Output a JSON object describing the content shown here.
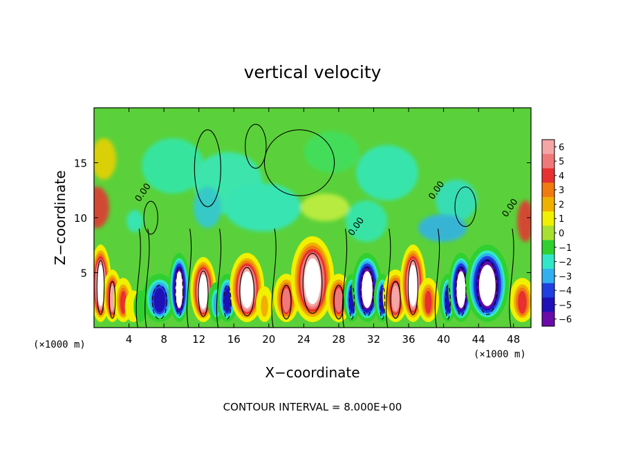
{
  "chart_data": {
    "type": "heatmap",
    "title": "vertical velocity",
    "xlabel": "X−coordinate",
    "ylabel": "Z−coordinate",
    "x_unit_note": "(×1000 m)",
    "y_unit_note": "(×1000 m)",
    "xlim": [
      0,
      50
    ],
    "ylim": [
      0,
      20
    ],
    "x_ticks": [
      "4",
      "8",
      "12",
      "16",
      "20",
      "24",
      "28",
      "32",
      "36",
      "40",
      "44",
      "48"
    ],
    "x_tick_values": [
      4,
      8,
      12,
      16,
      20,
      24,
      28,
      32,
      36,
      40,
      44,
      48
    ],
    "y_ticks": [
      "5",
      "10",
      "15"
    ],
    "y_tick_values": [
      5,
      10,
      15
    ],
    "colorbar": {
      "labels": [
        "6",
        "5",
        "4",
        "3",
        "2",
        "1",
        "0",
        "−1",
        "−2",
        "−3",
        "−4",
        "−5",
        "−6"
      ],
      "values": [
        6,
        5,
        4,
        3,
        2,
        1,
        0,
        -1,
        -2,
        -3,
        -4,
        -5,
        -6
      ],
      "colors": [
        "#f4a6a6",
        "#f07878",
        "#e83030",
        "#f07a10",
        "#f0b000",
        "#f0f000",
        "#a8e030",
        "#30d030",
        "#30e8c8",
        "#30b0f0",
        "#1f3fe0",
        "#2010b8",
        "#6a0aa8"
      ]
    },
    "contour_levels": [
      -8,
      0,
      8
    ],
    "contour_labels": [
      "0.00"
    ],
    "footnote": "CONTOUR INTERVAL = 8.000E+00",
    "cells": [
      {
        "x": [
          0,
          1.5
        ],
        "v": 12
      },
      {
        "x": [
          1.5,
          2.7
        ],
        "v": 6
      },
      {
        "x": [
          2.7,
          4.0
        ],
        "v": 4
      },
      {
        "x": [
          4.0,
          5.0
        ],
        "v": 1
      },
      {
        "x": [
          5.0,
          5.6
        ],
        "v": -1
      },
      {
        "x": [
          6.0,
          9.0
        ],
        "v": -5
      },
      {
        "x": [
          9.0,
          10.5
        ],
        "v": -10
      },
      {
        "x": [
          11.5,
          13.5
        ],
        "v": 9
      },
      {
        "x": [
          13.5,
          14.5
        ],
        "v": -3
      },
      {
        "x": [
          14.5,
          16.0
        ],
        "v": -5
      },
      {
        "x": [
          16.0,
          19.0
        ],
        "v": 10
      },
      {
        "x": [
          19.0,
          20.0
        ],
        "v": 2
      },
      {
        "x": [
          21.0,
          23.0
        ],
        "v": 5
      },
      {
        "x": [
          23.0,
          27.0
        ],
        "v": 14
      },
      {
        "x": [
          27.0,
          29.0
        ],
        "v": 5
      },
      {
        "x": [
          29.0,
          30.0
        ],
        "v": -5
      },
      {
        "x": [
          30.0,
          32.5
        ],
        "v": -10
      },
      {
        "x": [
          32.5,
          33.5
        ],
        "v": -5
      },
      {
        "x": [
          33.5,
          35.5
        ],
        "v": 6
      },
      {
        "x": [
          35.5,
          37.5
        ],
        "v": 12
      },
      {
        "x": [
          37.5,
          39.0
        ],
        "v": 4
      },
      {
        "x": [
          40.0,
          41.0
        ],
        "v": -5
      },
      {
        "x": [
          41.0,
          43.0
        ],
        "v": -10
      },
      {
        "x": [
          43.0,
          47.0
        ],
        "v": -12
      },
      {
        "x": [
          48.0,
          50.0
        ],
        "v": 4
      }
    ]
  }
}
